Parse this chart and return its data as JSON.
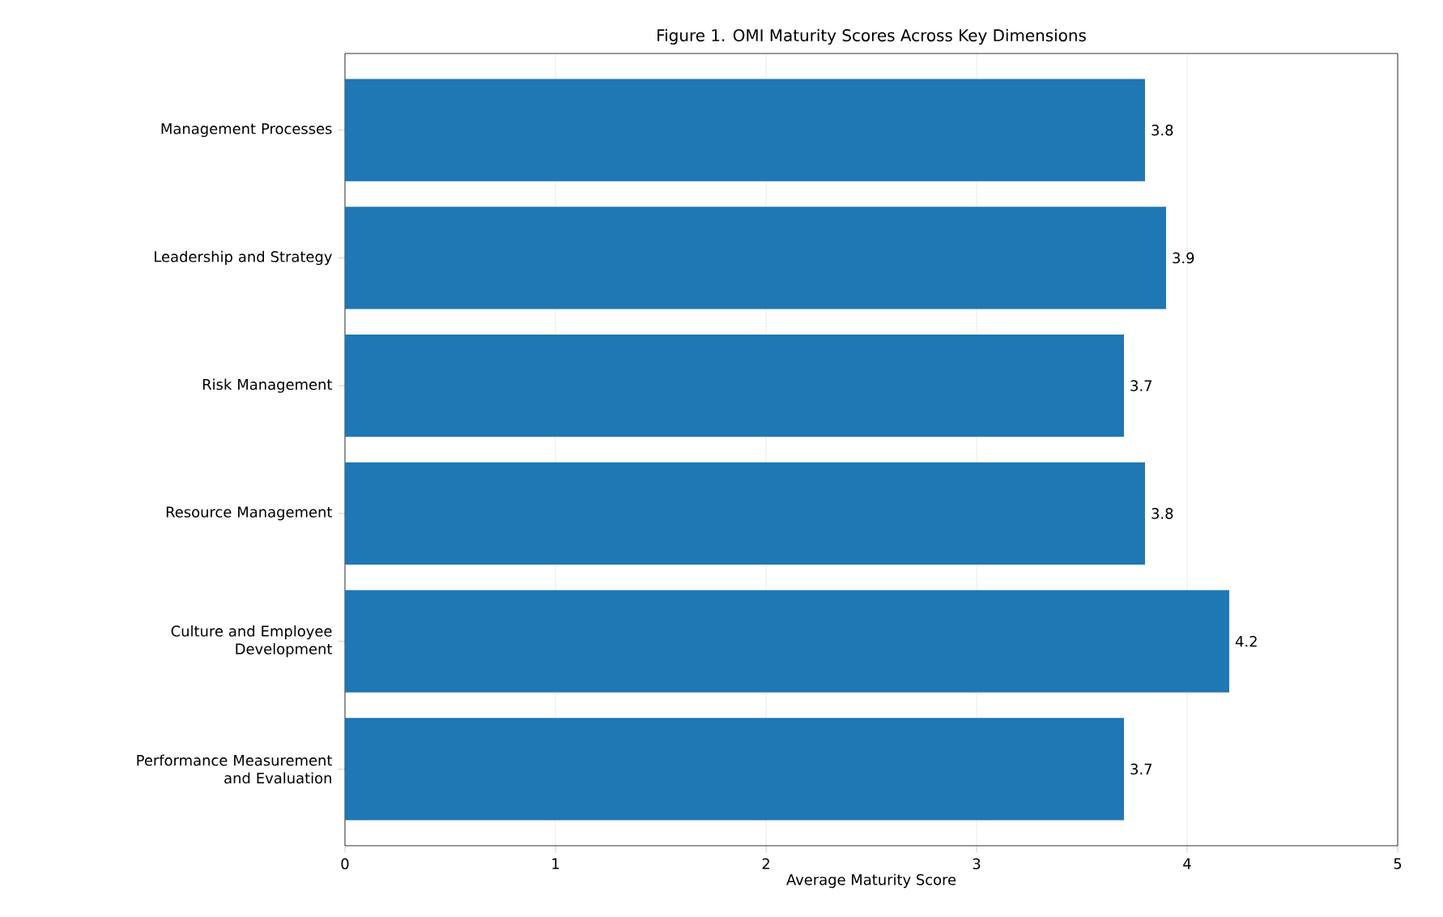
{
  "chart_data": {
    "type": "bar",
    "orientation": "horizontal",
    "title": "Figure 1. OMI Maturity Scores Across Key Dimensions",
    "xlabel": "Average Maturity Score",
    "categories": [
      "Management Processes",
      "Leadership and Strategy",
      "Risk Management",
      "Resource Management",
      "Culture and Employee Development",
      "Performance Measurement and Evaluation"
    ],
    "values": [
      3.8,
      3.9,
      3.7,
      3.8,
      4.2,
      3.7
    ],
    "color": "#1f77b4",
    "data_labels": true,
    "xlim": [
      0,
      5
    ],
    "xticks": [
      0,
      1,
      2,
      3,
      4,
      5
    ],
    "grid": "x"
  }
}
